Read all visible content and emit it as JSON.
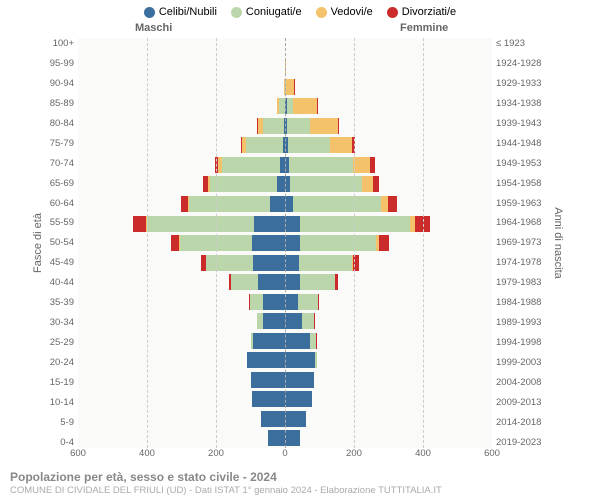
{
  "legend": [
    {
      "label": "Celibi/Nubili",
      "color": "#3b6e9c"
    },
    {
      "label": "Coniugati/e",
      "color": "#bcd6ab"
    },
    {
      "label": "Vedovi/e",
      "color": "#f4c26a"
    },
    {
      "label": "Divorziati/e",
      "color": "#cc2b2b"
    }
  ],
  "headers": {
    "left": "Maschi",
    "right": "Femmine"
  },
  "axis_titles": {
    "left": "Fasce di età",
    "right": "Anni di nascita"
  },
  "footer": {
    "title": "Popolazione per età, sesso e stato civile - 2024",
    "sub": "COMUNE DI CIVIDALE DEL FRIULI (UD) - Dati ISTAT 1° gennaio 2024 - Elaborazione TUTTITALIA.IT"
  },
  "x_range": 600,
  "x_ticks": [
    600,
    400,
    200,
    0,
    200,
    400,
    600
  ],
  "rows": [
    {
      "age": "100+",
      "birth": "≤ 1923",
      "m": {
        "s": 0,
        "c": 0,
        "w": 3,
        "d": 0
      },
      "f": {
        "s": 0,
        "c": 0,
        "w": 8,
        "d": 0
      }
    },
    {
      "age": "95-99",
      "birth": "1924-1928",
      "m": {
        "s": 1,
        "c": 2,
        "w": 6,
        "d": 0
      },
      "f": {
        "s": 2,
        "c": 1,
        "w": 38,
        "d": 0
      }
    },
    {
      "age": "90-94",
      "birth": "1929-1933",
      "m": {
        "s": 2,
        "c": 18,
        "w": 18,
        "d": 0
      },
      "f": {
        "s": 6,
        "c": 6,
        "w": 110,
        "d": 2
      }
    },
    {
      "age": "85-89",
      "birth": "1934-1938",
      "m": {
        "s": 4,
        "c": 80,
        "w": 30,
        "d": 2
      },
      "f": {
        "s": 12,
        "c": 48,
        "w": 175,
        "d": 4
      }
    },
    {
      "age": "80-84",
      "birth": "1939-1943",
      "m": {
        "s": 8,
        "c": 170,
        "w": 35,
        "d": 6
      },
      "f": {
        "s": 14,
        "c": 125,
        "w": 160,
        "d": 8
      }
    },
    {
      "age": "75-79",
      "birth": "1944-1948",
      "m": {
        "s": 14,
        "c": 230,
        "w": 24,
        "d": 10
      },
      "f": {
        "s": 16,
        "c": 210,
        "w": 110,
        "d": 12
      }
    },
    {
      "age": "70-74",
      "birth": "1949-1953",
      "m": {
        "s": 24,
        "c": 290,
        "w": 18,
        "d": 18
      },
      "f": {
        "s": 18,
        "c": 280,
        "w": 75,
        "d": 22
      }
    },
    {
      "age": "65-69",
      "birth": "1954-1958",
      "m": {
        "s": 36,
        "c": 310,
        "w": 10,
        "d": 22
      },
      "f": {
        "s": 22,
        "c": 310,
        "w": 45,
        "d": 28
      }
    },
    {
      "age": "60-64",
      "birth": "1959-1963",
      "m": {
        "s": 60,
        "c": 330,
        "w": 6,
        "d": 30
      },
      "f": {
        "s": 32,
        "c": 345,
        "w": 28,
        "d": 36
      }
    },
    {
      "age": "55-59",
      "birth": "1964-1968",
      "m": {
        "s": 105,
        "c": 360,
        "w": 4,
        "d": 46
      },
      "f": {
        "s": 52,
        "c": 380,
        "w": 20,
        "d": 50
      }
    },
    {
      "age": "50-54",
      "birth": "1969-1973",
      "m": {
        "s": 130,
        "c": 280,
        "w": 2,
        "d": 34
      },
      "f": {
        "s": 62,
        "c": 310,
        "w": 12,
        "d": 42
      }
    },
    {
      "age": "45-49",
      "birth": "1974-1978",
      "m": {
        "s": 145,
        "c": 215,
        "w": 1,
        "d": 22
      },
      "f": {
        "s": 70,
        "c": 255,
        "w": 6,
        "d": 28
      }
    },
    {
      "age": "40-44",
      "birth": "1979-1983",
      "m": {
        "s": 150,
        "c": 150,
        "w": 0,
        "d": 12
      },
      "f": {
        "s": 85,
        "c": 200,
        "w": 2,
        "d": 16
      }
    },
    {
      "age": "35-39",
      "birth": "1984-1988",
      "m": {
        "s": 150,
        "c": 95,
        "w": 0,
        "d": 5
      },
      "f": {
        "s": 95,
        "c": 140,
        "w": 1,
        "d": 8
      }
    },
    {
      "age": "30-34",
      "birth": "1989-1993",
      "m": {
        "s": 170,
        "c": 50,
        "w": 0,
        "d": 2
      },
      "f": {
        "s": 130,
        "c": 95,
        "w": 0,
        "d": 3
      }
    },
    {
      "age": "25-29",
      "birth": "1994-1998",
      "m": {
        "s": 230,
        "c": 15,
        "w": 0,
        "d": 0
      },
      "f": {
        "s": 185,
        "c": 45,
        "w": 0,
        "d": 1
      }
    },
    {
      "age": "20-24",
      "birth": "1999-2003",
      "m": {
        "s": 255,
        "c": 3,
        "w": 0,
        "d": 0
      },
      "f": {
        "s": 225,
        "c": 10,
        "w": 0,
        "d": 0
      }
    },
    {
      "age": "15-19",
      "birth": "2004-2008",
      "m": {
        "s": 245,
        "c": 0,
        "w": 0,
        "d": 0
      },
      "f": {
        "s": 225,
        "c": 0,
        "w": 0,
        "d": 0
      }
    },
    {
      "age": "10-14",
      "birth": "2009-2013",
      "m": {
        "s": 240,
        "c": 0,
        "w": 0,
        "d": 0
      },
      "f": {
        "s": 215,
        "c": 0,
        "w": 0,
        "d": 0
      }
    },
    {
      "age": "5-9",
      "birth": "2014-2018",
      "m": {
        "s": 205,
        "c": 0,
        "w": 0,
        "d": 0
      },
      "f": {
        "s": 190,
        "c": 0,
        "w": 0,
        "d": 0
      }
    },
    {
      "age": "0-4",
      "birth": "2019-2023",
      "m": {
        "s": 170,
        "c": 0,
        "w": 0,
        "d": 0
      },
      "f": {
        "s": 160,
        "c": 0,
        "w": 0,
        "d": 0
      }
    }
  ],
  "colors": {
    "single": "#3b6e9c",
    "married": "#bcd6ab",
    "widowed": "#f4c26a",
    "divorced": "#cc2b2b",
    "background": "#fafaf8",
    "grid": "#cccccc",
    "center": "#aaaaaa",
    "text": "#666666"
  },
  "fonts": {
    "label": 9.5,
    "header": 11,
    "legend": 11,
    "title": 12
  }
}
